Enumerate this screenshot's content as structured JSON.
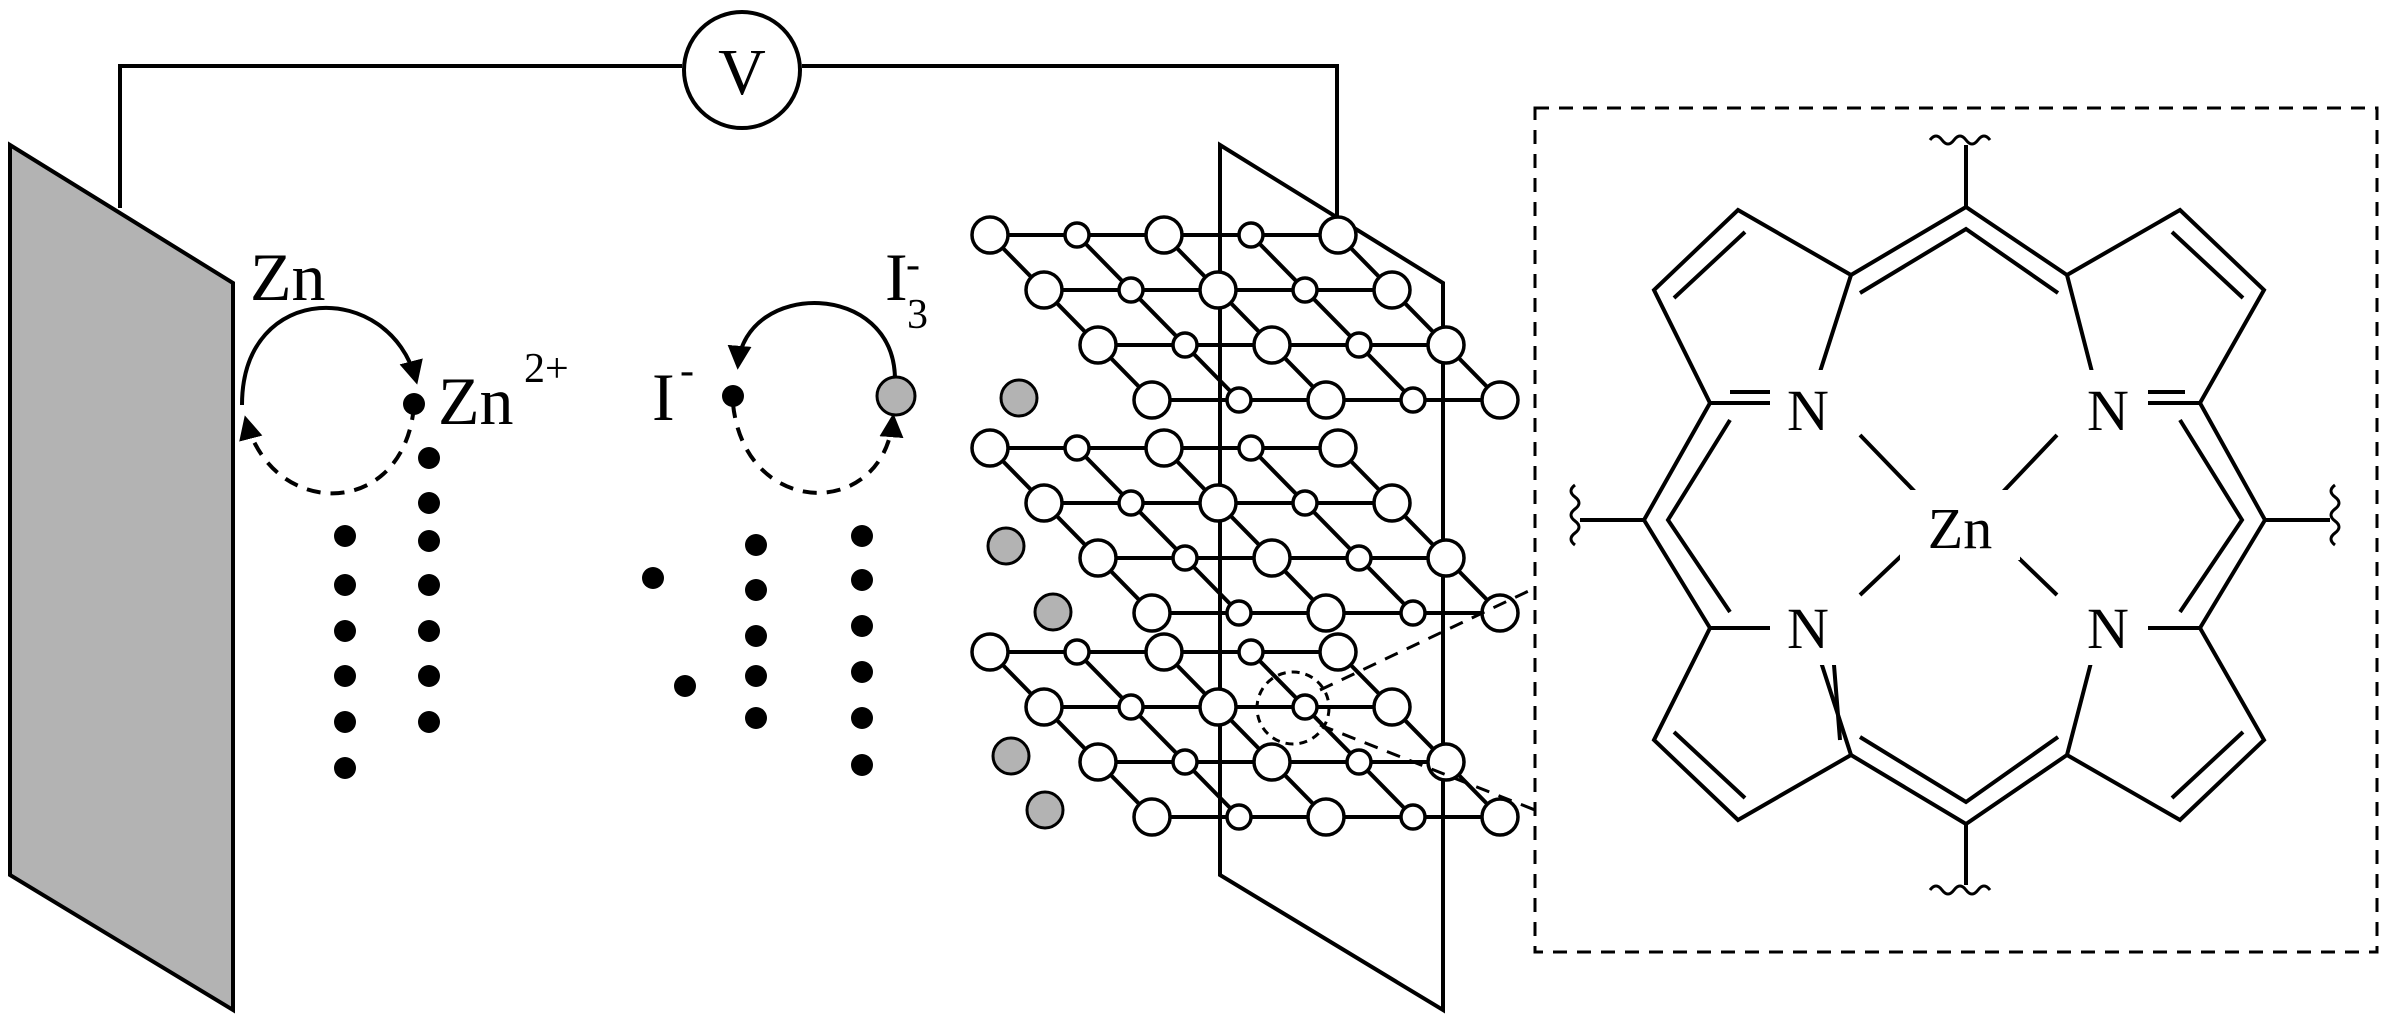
{
  "voltmeter": {
    "label": "V"
  },
  "anode": {
    "reaction_from": "Zn",
    "reaction_to": "Zn",
    "reaction_to_superscript": "2+"
  },
  "electrolyte": {
    "iodide": "I",
    "iodide_superscript": "-",
    "triiodide": "I",
    "triiodide_subscript": "3",
    "triiodide_superscript": "-"
  },
  "zoom_inset": {
    "center_atom": "Zn",
    "nitrogen_label": "N"
  },
  "colors": {
    "line": "#000000",
    "anode_plate": "#b3b3b3",
    "ion_fill": "#b3b3b3",
    "background": "#ffffff"
  }
}
